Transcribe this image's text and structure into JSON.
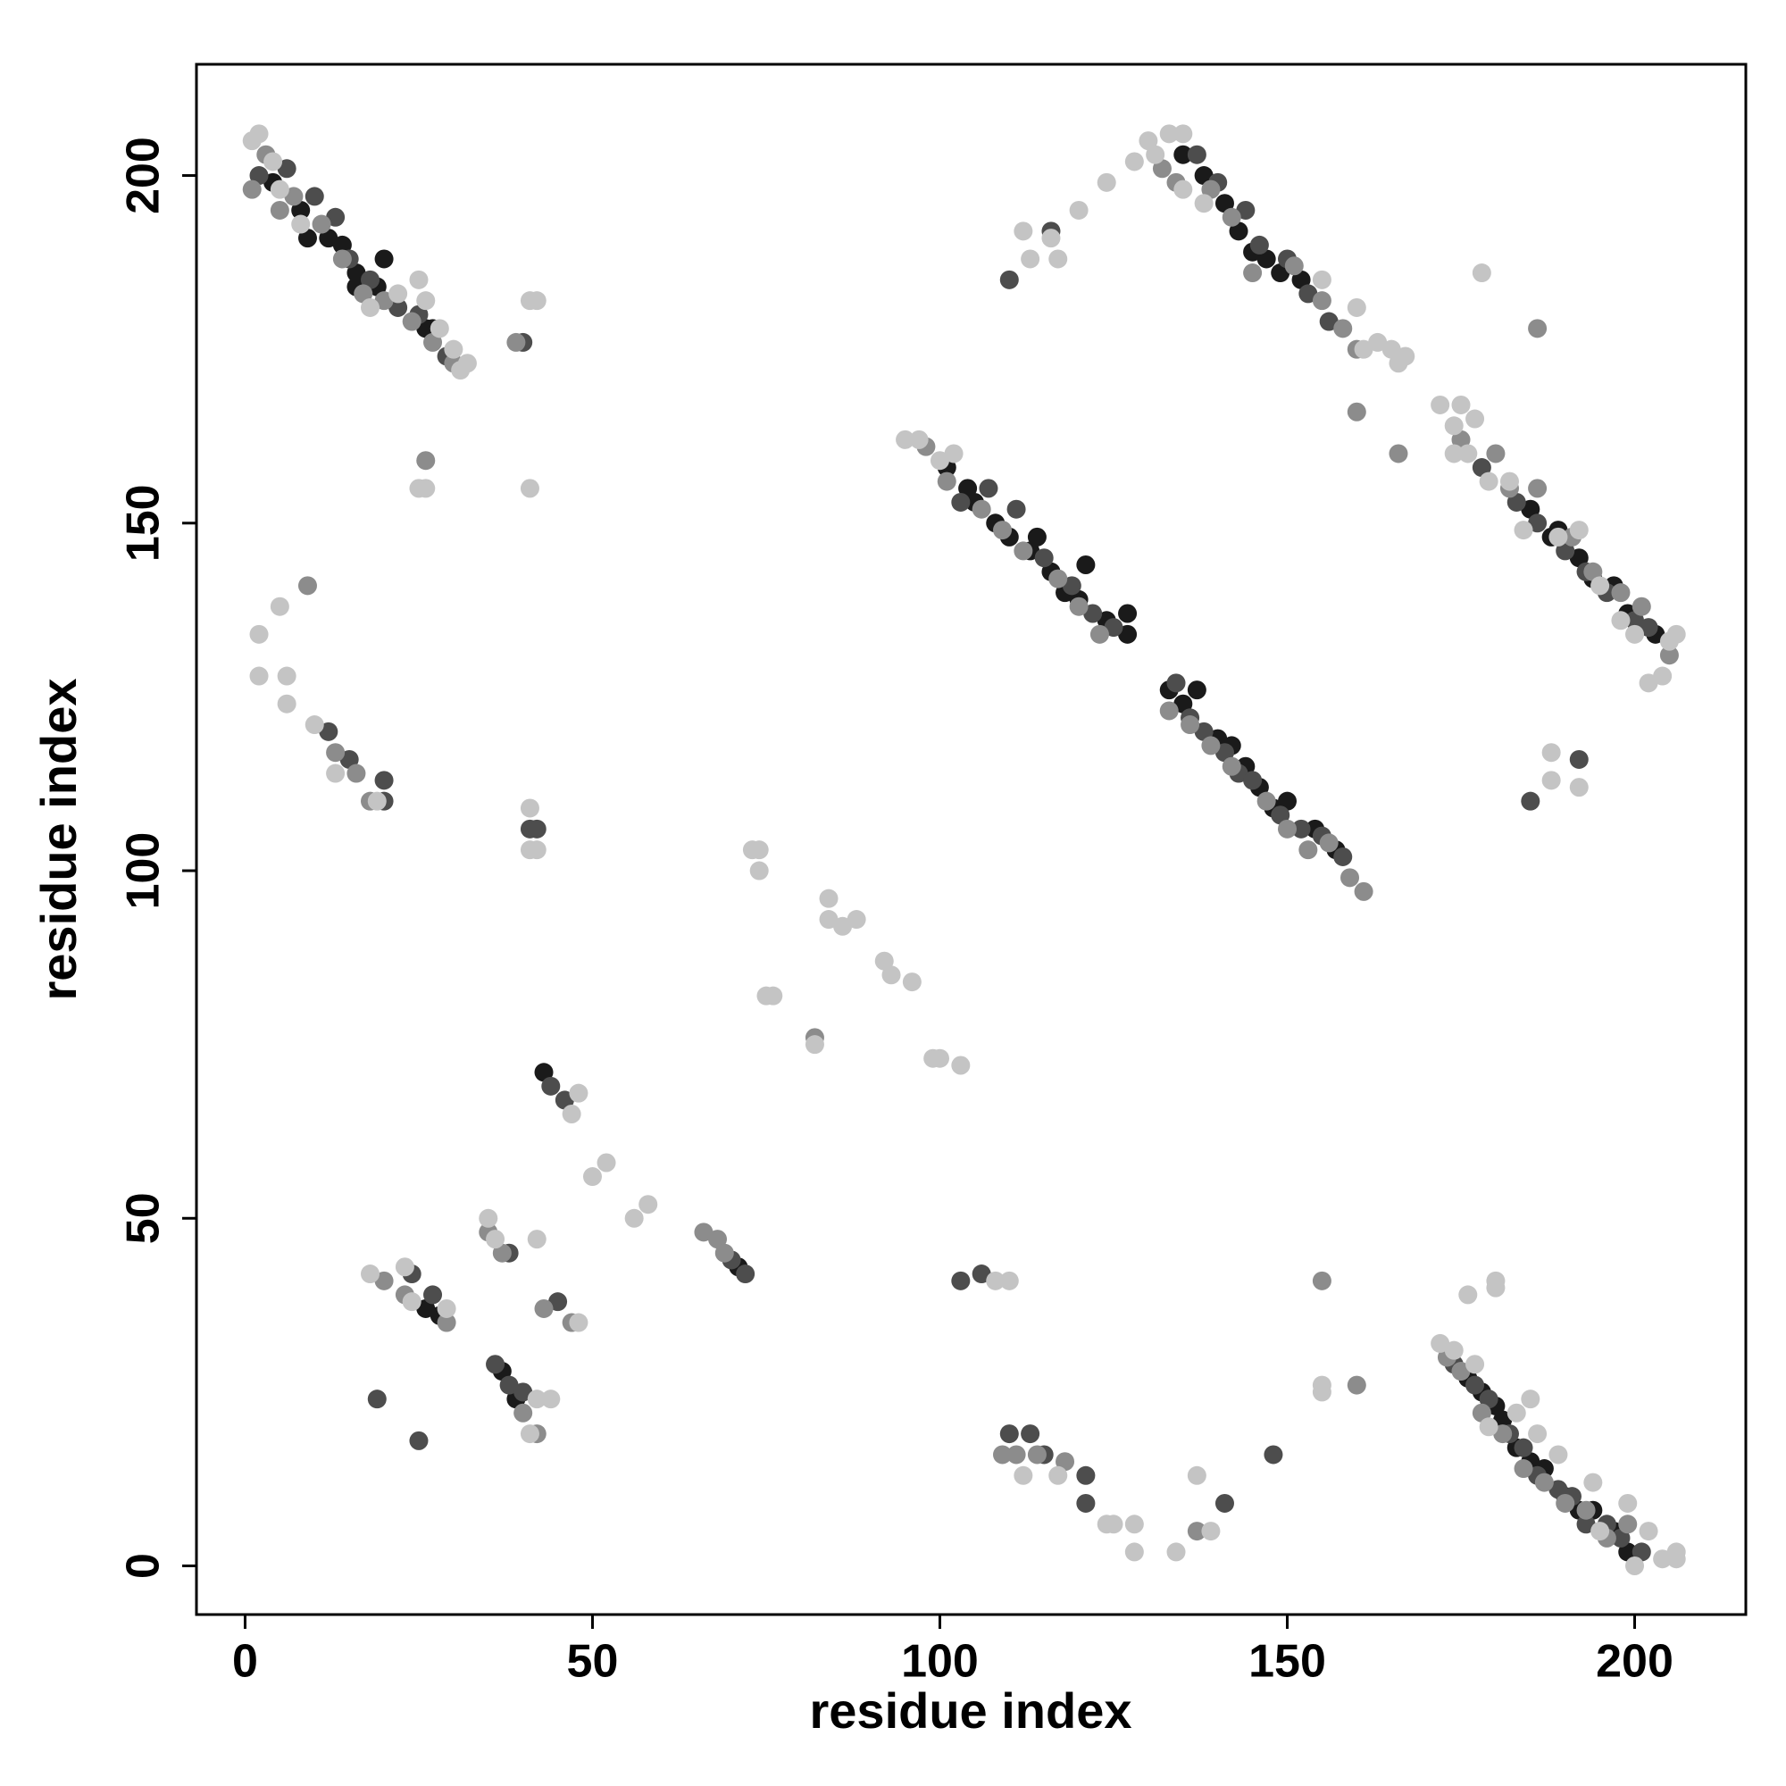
{
  "chart_data": {
    "type": "scatter",
    "xlabel": "residue index",
    "ylabel": "residue index",
    "xlim": [
      -7,
      216
    ],
    "ylim": [
      -7,
      216
    ],
    "xticks": [
      0,
      50,
      100,
      150,
      200
    ],
    "yticks": [
      0,
      50,
      100,
      150,
      200
    ],
    "series": [
      {
        "color": "#1a1a1a",
        "x": [
          4,
          8,
          9,
          12,
          14,
          16,
          16,
          19,
          20,
          26,
          27,
          101,
          104,
          105,
          108,
          110,
          113,
          114,
          116,
          118,
          120,
          121,
          124,
          127,
          127,
          133,
          135,
          137,
          140,
          142,
          144,
          146,
          148,
          150,
          154,
          157,
          135,
          138,
          141,
          143,
          145,
          147,
          149,
          152,
          185,
          188,
          189,
          192,
          194,
          197,
          199,
          203,
          176,
          178,
          180,
          181,
          183,
          185,
          187,
          190,
          192,
          194,
          197,
          199,
          26,
          28,
          37,
          39,
          43,
          71
        ],
        "values": [
          199,
          195,
          191,
          191,
          190,
          186,
          184,
          184,
          188,
          178,
          178,
          158,
          155,
          153,
          150,
          148,
          146,
          148,
          143,
          140,
          139,
          144,
          136,
          134,
          137,
          126,
          124,
          126,
          119,
          118,
          115,
          112,
          109,
          110,
          106,
          103,
          203,
          200,
          196,
          192,
          189,
          188,
          186,
          185,
          152,
          148,
          149,
          145,
          142,
          141,
          137,
          134,
          27,
          25,
          23,
          21,
          17,
          15,
          14,
          10,
          8,
          8,
          5,
          2,
          37,
          36,
          28,
          24,
          71,
          43
        ]
      },
      {
        "color": "#4d4d4d",
        "x": [
          2,
          6,
          10,
          13,
          15,
          18,
          22,
          25,
          29,
          12,
          15,
          20,
          20,
          40,
          25,
          19,
          110,
          116,
          103,
          107,
          111,
          115,
          119,
          122,
          125,
          134,
          136,
          138,
          141,
          143,
          145,
          149,
          152,
          155,
          158,
          137,
          140,
          144,
          146,
          150,
          153,
          156,
          178,
          183,
          186,
          190,
          193,
          196,
          200,
          202,
          174,
          177,
          179,
          182,
          184,
          186,
          189,
          191,
          193,
          196,
          198,
          201,
          41,
          42,
          24,
          27,
          36,
          38,
          40,
          44,
          46,
          45,
          38,
          70,
          72,
          110,
          113,
          115,
          121,
          121,
          192,
          185,
          148,
          141,
          103,
          106
        ],
        "values": [
          200,
          201,
          197,
          194,
          188,
          185,
          181,
          180,
          174,
          120,
          116,
          113,
          110,
          176,
          18,
          24,
          185,
          192,
          153,
          155,
          152,
          145,
          141,
          137,
          135,
          127,
          122,
          120,
          117,
          114,
          113,
          108,
          106,
          105,
          102,
          203,
          199,
          195,
          190,
          188,
          183,
          179,
          158,
          153,
          150,
          146,
          143,
          140,
          136,
          135,
          29,
          26,
          24,
          19,
          17,
          13,
          11,
          10,
          6,
          6,
          4,
          2,
          106,
          106,
          42,
          39,
          29,
          26,
          25,
          69,
          67,
          38,
          45,
          44,
          42,
          19,
          19,
          16,
          13,
          9,
          116,
          110,
          16,
          9,
          41,
          42
        ]
      },
      {
        "color": "#8c8c8c",
        "x": [
          1,
          3,
          5,
          7,
          11,
          14,
          17,
          20,
          24,
          27,
          30,
          9,
          13,
          16,
          18,
          26,
          39,
          98,
          101,
          106,
          109,
          112,
          117,
          120,
          123,
          133,
          136,
          139,
          142,
          147,
          150,
          153,
          156,
          159,
          161,
          132,
          134,
          139,
          142,
          145,
          151,
          155,
          158,
          160,
          166,
          160,
          175,
          180,
          182,
          186,
          191,
          194,
          198,
          201,
          205,
          173,
          175,
          178,
          181,
          184,
          187,
          190,
          193,
          196,
          199,
          20,
          23,
          29,
          35,
          37,
          40,
          42,
          43,
          47,
          66,
          68,
          69,
          82,
          109,
          114,
          118,
          137,
          160,
          155,
          186,
          111
        ],
        "values": [
          198,
          203,
          195,
          197,
          193,
          188,
          183,
          182,
          179,
          176,
          173,
          141,
          117,
          114,
          110,
          159,
          176,
          161,
          156,
          152,
          149,
          146,
          142,
          138,
          134,
          123,
          121,
          118,
          115,
          110,
          106,
          103,
          104,
          99,
          97,
          201,
          199,
          198,
          194,
          186,
          187,
          182,
          178,
          175,
          160,
          166,
          162,
          160,
          155,
          155,
          148,
          143,
          140,
          138,
          131,
          30,
          28,
          22,
          19,
          14,
          12,
          9,
          8,
          4,
          6,
          41,
          39,
          35,
          48,
          45,
          22,
          19,
          37,
          35,
          48,
          47,
          45,
          76,
          16,
          16,
          15,
          5,
          26,
          41,
          178,
          16
        ]
      },
      {
        "color": "#c4c4c4",
        "x": [
          1,
          2,
          4,
          5,
          8,
          18,
          22,
          25,
          26,
          28,
          30,
          31,
          32,
          2,
          2,
          5,
          6,
          6,
          10,
          13,
          19,
          25,
          26,
          41,
          41,
          42,
          41,
          41,
          42,
          73,
          74,
          74,
          84,
          84,
          86,
          88,
          92,
          93,
          96,
          75,
          76,
          82,
          99,
          100,
          103,
          50,
          52,
          56,
          58,
          48,
          41,
          35,
          36,
          42,
          47,
          48,
          44,
          42,
          29,
          18,
          23,
          24,
          108,
          110,
          112,
          113,
          117,
          124,
          120,
          128,
          130,
          131,
          133,
          135,
          128,
          134,
          137,
          139,
          125,
          124,
          128,
          112,
          117,
          95,
          97,
          100,
          102,
          116,
          135,
          138,
          155,
          160,
          161,
          163,
          165,
          166,
          167,
          172,
          174,
          175,
          177,
          174,
          176,
          179,
          182,
          184,
          189,
          192,
          195,
          198,
          200,
          205,
          206,
          204,
          202,
          178,
          185,
          172,
          174,
          177,
          180,
          180,
          176,
          155,
          155,
          179,
          183,
          186,
          189,
          194,
          195,
          199,
          200,
          202,
          204,
          206,
          206,
          188,
          188,
          192
        ],
        "values": [
          205,
          206,
          202,
          198,
          193,
          181,
          183,
          185,
          182,
          178,
          175,
          172,
          173,
          134,
          128,
          138,
          128,
          124,
          121,
          114,
          110,
          155,
          155,
          155,
          182,
          182,
          109,
          103,
          103,
          103,
          100,
          103,
          96,
          93,
          92,
          93,
          87,
          85,
          84,
          82,
          82,
          75,
          73,
          73,
          72,
          56,
          58,
          50,
          52,
          35,
          19,
          50,
          47,
          47,
          65,
          68,
          24,
          24,
          37,
          42,
          43,
          38,
          41,
          41,
          192,
          188,
          188,
          199,
          195,
          202,
          205,
          203,
          206,
          206,
          2,
          2,
          13,
          5,
          6,
          6,
          6,
          13,
          13,
          162,
          162,
          159,
          160,
          191,
          198,
          196,
          185,
          181,
          175,
          176,
          175,
          173,
          174,
          167,
          164,
          167,
          165,
          160,
          160,
          156,
          156,
          149,
          148,
          149,
          141,
          136,
          134,
          133,
          134,
          128,
          127,
          186,
          24,
          32,
          31,
          29,
          41,
          40,
          39,
          25,
          26,
          20,
          22,
          19,
          16,
          12,
          5,
          9,
          0,
          5,
          1,
          1,
          2,
          113,
          117,
          112
        ]
      }
    ]
  }
}
